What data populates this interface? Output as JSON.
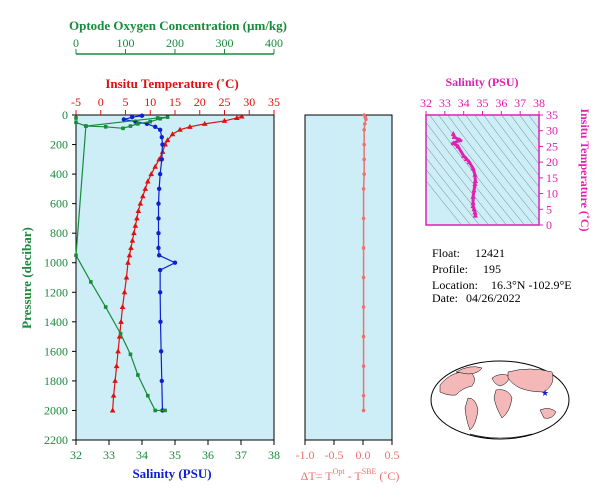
{
  "colors": {
    "oxygen": "#1a8a3c",
    "temperature": "#e01010",
    "salinity": "#1020d0",
    "pressure": "#1a8a3c",
    "delta": "#f07070",
    "ts": "#e020b0",
    "plot_bg": "#cdeef6",
    "land": "#f4b8b8",
    "ocean": "#ffffff"
  },
  "chart_data": [
    {
      "type": "line",
      "title": "",
      "ylabel": "Pressure (decibar)",
      "ylim": [
        2200,
        0
      ],
      "yticks": [
        "0",
        "200",
        "400",
        "600",
        "800",
        "1000",
        "1200",
        "1400",
        "1600",
        "1800",
        "2000",
        "2200"
      ],
      "grid": false,
      "axes": {
        "oxygen": {
          "label": "Optode Oxygen Concentration (µm/kg)",
          "range": [
            0,
            400
          ],
          "ticks": [
            "0",
            "100",
            "200",
            "300",
            "400"
          ]
        },
        "temperature": {
          "label": "Insitu Temperature (˚C)",
          "range": [
            -5,
            35
          ],
          "ticks": [
            "-5",
            "0",
            "5",
            "10",
            "15",
            "20",
            "25",
            "30",
            "35"
          ]
        },
        "salinity": {
          "label": "Salinity (PSU)",
          "range": [
            32,
            38
          ],
          "ticks": [
            "32",
            "33",
            "34",
            "35",
            "36",
            "37",
            "38"
          ]
        }
      },
      "series": [
        {
          "key": "temperature",
          "points": [
            [
              28.5,
              10
            ],
            [
              27.5,
              20
            ],
            [
              25,
              40
            ],
            [
              21,
              60
            ],
            [
              18,
              80
            ],
            [
              16,
              100
            ],
            [
              14.5,
              130
            ],
            [
              13.5,
              170
            ],
            [
              13,
              200
            ],
            [
              12.5,
              250
            ],
            [
              11.8,
              300
            ],
            [
              11,
              350
            ],
            [
              10.2,
              400
            ],
            [
              9.5,
              450
            ],
            [
              9,
              500
            ],
            [
              8.5,
              550
            ],
            [
              8,
              600
            ],
            [
              7.6,
              650
            ],
            [
              7.3,
              700
            ],
            [
              7,
              750
            ],
            [
              6.7,
              800
            ],
            [
              6.4,
              850
            ],
            [
              6.1,
              900
            ],
            [
              5.8,
              950
            ],
            [
              5.5,
              1000
            ],
            [
              5.2,
              1100
            ],
            [
              4.8,
              1200
            ],
            [
              4.4,
              1300
            ],
            [
              4.1,
              1400
            ],
            [
              3.8,
              1500
            ],
            [
              3.5,
              1600
            ],
            [
              3.2,
              1700
            ],
            [
              2.9,
              1800
            ],
            [
              2.6,
              1900
            ],
            [
              2.4,
              2000
            ]
          ]
        },
        {
          "key": "salinity",
          "points": [
            [
              34.0,
              5
            ],
            [
              33.7,
              15
            ],
            [
              33.45,
              30
            ],
            [
              33.8,
              45
            ],
            [
              34.15,
              60
            ],
            [
              34.4,
              80
            ],
            [
              34.55,
              100
            ],
            [
              34.6,
              150
            ],
            [
              34.62,
              200
            ],
            [
              34.6,
              300
            ],
            [
              34.55,
              400
            ],
            [
              34.52,
              500
            ],
            [
              34.5,
              600
            ],
            [
              34.5,
              700
            ],
            [
              34.5,
              800
            ],
            [
              34.5,
              900
            ],
            [
              34.52,
              950
            ],
            [
              35.0,
              1000
            ],
            [
              34.55,
              1050
            ],
            [
              34.55,
              1200
            ],
            [
              34.56,
              1400
            ],
            [
              34.58,
              1600
            ],
            [
              34.6,
              1800
            ],
            [
              34.62,
              2000
            ]
          ]
        },
        {
          "key": "oxygen",
          "points": [
            [
              0,
              20
            ],
            [
              0,
              50
            ],
            [
              20,
              75
            ],
            [
              165,
              20
            ],
            [
              185,
              15
            ],
            [
              170,
              25
            ],
            [
              150,
              45
            ],
            [
              125,
              60
            ],
            [
              110,
              75
            ],
            [
              95,
              90
            ],
            [
              60,
              80
            ],
            [
              20,
              75
            ],
            [
              0,
              950
            ],
            [
              30,
              1130
            ],
            [
              60,
              1300
            ],
            [
              90,
              1480
            ],
            [
              110,
              1620
            ],
            [
              125,
              1760
            ],
            [
              145,
              1900
            ],
            [
              160,
              2000
            ],
            [
              180,
              2000
            ]
          ]
        }
      ]
    },
    {
      "type": "line",
      "title": "",
      "xlabel": "ΔT= T",
      "xlabel_sup1": "Opt",
      "xlabel_mid": " - T",
      "xlabel_sup2": "SBE",
      "xlabel_unit": " (˚C)",
      "xlim": [
        -1.0,
        0.5
      ],
      "xticks": [
        "-1.0",
        "-0.5",
        "0.0",
        "0.5"
      ],
      "ylim": [
        2200,
        0
      ],
      "series": [
        {
          "name": "",
          "points": [
            [
              0.02,
              0
            ],
            [
              0.04,
              15
            ],
            [
              0.05,
              30
            ],
            [
              0.03,
              60
            ],
            [
              0.02,
              100
            ],
            [
              0.02,
              200
            ],
            [
              0.02,
              300
            ],
            [
              0.02,
              400
            ],
            [
              0.01,
              500
            ],
            [
              0.01,
              700
            ],
            [
              0.01,
              900
            ],
            [
              0.01,
              1100
            ],
            [
              0.01,
              1300
            ],
            [
              0.01,
              1500
            ],
            [
              0.01,
              1700
            ],
            [
              0.01,
              1900
            ],
            [
              0.01,
              2000
            ]
          ]
        }
      ]
    },
    {
      "type": "scatter",
      "title": "",
      "xlabel": "Salinity (PSU)",
      "ylabel": "Insitu Temperature (˚C)",
      "xlim": [
        32,
        38
      ],
      "ylim": [
        0,
        35
      ],
      "xticks": [
        "32",
        "33",
        "34",
        "35",
        "36",
        "37",
        "38"
      ],
      "yticks": [
        "0",
        "5",
        "10",
        "15",
        "20",
        "25",
        "30",
        "35"
      ],
      "series": [
        {
          "name": "",
          "points": [
            [
              33.45,
              29
            ],
            [
              33.5,
              28
            ],
            [
              33.7,
              25
            ],
            [
              34.0,
              22
            ],
            [
              34.3,
              20
            ],
            [
              34.5,
              18
            ],
            [
              34.6,
              16
            ],
            [
              34.62,
              14
            ],
            [
              34.6,
              13
            ],
            [
              34.55,
              11
            ],
            [
              34.5,
              9
            ],
            [
              34.5,
              7
            ],
            [
              34.5,
              6
            ],
            [
              34.55,
              5
            ],
            [
              34.6,
              4
            ],
            [
              34.62,
              3
            ],
            [
              33.8,
              27
            ],
            [
              33.45,
              26
            ],
            [
              34.15,
              21
            ]
          ]
        }
      ]
    }
  ],
  "info": {
    "float_label": "Float:",
    "float_value": "12421",
    "profile_label": "Profile:",
    "profile_value": "195",
    "location_label": "Location:",
    "location_value": "16.3°N  -102.9°E",
    "date_label": "Date:",
    "date_value": "04/26/2022"
  },
  "map": {
    "marker": "star"
  }
}
